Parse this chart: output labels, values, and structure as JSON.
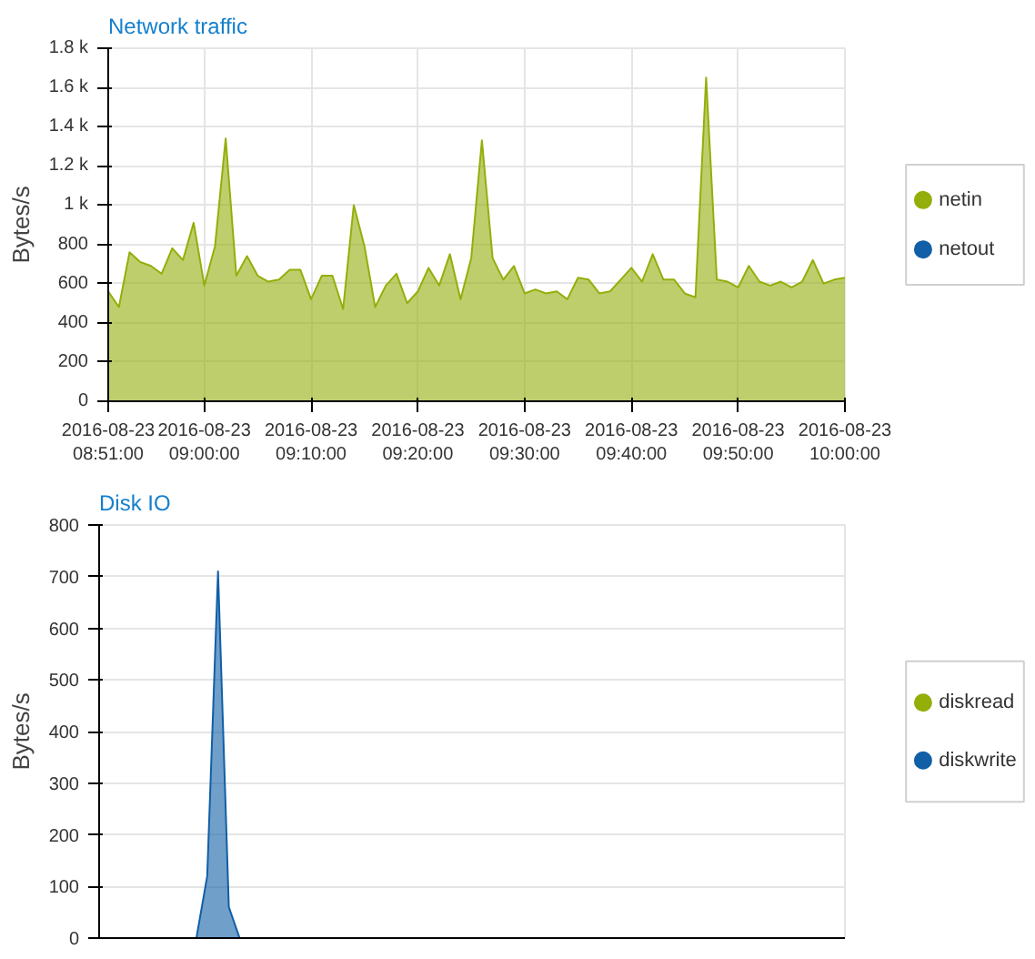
{
  "chart_data": [
    {
      "type": "area",
      "title": "Network traffic",
      "ylabel": "Bytes/s",
      "x": [
        "2016-08-23T08:51",
        "2016-08-23T08:52",
        "2016-08-23T08:53",
        "2016-08-23T08:54",
        "2016-08-23T08:55",
        "2016-08-23T08:56",
        "2016-08-23T08:57",
        "2016-08-23T08:58",
        "2016-08-23T08:59",
        "2016-08-23T09:00",
        "2016-08-23T09:01",
        "2016-08-23T09:02",
        "2016-08-23T09:03",
        "2016-08-23T09:04",
        "2016-08-23T09:05",
        "2016-08-23T09:06",
        "2016-08-23T09:07",
        "2016-08-23T09:08",
        "2016-08-23T09:09",
        "2016-08-23T09:10",
        "2016-08-23T09:11",
        "2016-08-23T09:12",
        "2016-08-23T09:13",
        "2016-08-23T09:14",
        "2016-08-23T09:15",
        "2016-08-23T09:16",
        "2016-08-23T09:17",
        "2016-08-23T09:18",
        "2016-08-23T09:19",
        "2016-08-23T09:20",
        "2016-08-23T09:21",
        "2016-08-23T09:22",
        "2016-08-23T09:23",
        "2016-08-23T09:24",
        "2016-08-23T09:25",
        "2016-08-23T09:26",
        "2016-08-23T09:27",
        "2016-08-23T09:28",
        "2016-08-23T09:29",
        "2016-08-23T09:30",
        "2016-08-23T09:31",
        "2016-08-23T09:32",
        "2016-08-23T09:33",
        "2016-08-23T09:34",
        "2016-08-23T09:35",
        "2016-08-23T09:36",
        "2016-08-23T09:37",
        "2016-08-23T09:38",
        "2016-08-23T09:39",
        "2016-08-23T09:40",
        "2016-08-23T09:41",
        "2016-08-23T09:42",
        "2016-08-23T09:43",
        "2016-08-23T09:44",
        "2016-08-23T09:45",
        "2016-08-23T09:46",
        "2016-08-23T09:47",
        "2016-08-23T09:48",
        "2016-08-23T09:49",
        "2016-08-23T09:50",
        "2016-08-23T09:51",
        "2016-08-23T09:52",
        "2016-08-23T09:53",
        "2016-08-23T09:54",
        "2016-08-23T09:55",
        "2016-08-23T09:56",
        "2016-08-23T09:57",
        "2016-08-23T09:58",
        "2016-08-23T09:59",
        "2016-08-23T10:00"
      ],
      "series": [
        {
          "name": "netin",
          "color": "#94ae0a",
          "values": [
            560,
            480,
            760,
            710,
            690,
            650,
            780,
            720,
            910,
            590,
            790,
            1340,
            640,
            740,
            640,
            610,
            620,
            670,
            670,
            520,
            640,
            640,
            470,
            1000,
            790,
            480,
            590,
            650,
            500,
            560,
            680,
            590,
            750,
            520,
            730,
            1330,
            730,
            620,
            690,
            550,
            570,
            550,
            560,
            520,
            630,
            620,
            550,
            560,
            620,
            680,
            610,
            750,
            620,
            620,
            550,
            530,
            1650,
            620,
            610,
            580,
            690,
            610,
            590,
            610,
            580,
            610,
            720,
            600,
            620,
            630
          ]
        },
        {
          "name": "netout",
          "color": "#115fa6",
          "values": [
            null,
            null,
            null,
            null,
            null,
            null,
            null,
            null,
            null,
            null,
            null,
            null,
            null,
            null,
            null,
            null,
            null,
            null,
            null,
            null,
            null,
            null,
            null,
            null,
            null,
            null,
            null,
            null,
            null,
            null,
            null,
            null,
            null,
            null,
            null,
            null,
            null,
            null,
            null,
            null,
            null,
            null,
            null,
            null,
            null,
            null,
            null,
            null,
            null,
            null,
            null,
            null,
            null,
            null,
            null,
            null,
            null,
            null,
            null,
            null,
            null,
            null,
            null,
            null,
            null,
            null,
            null,
            null,
            null,
            null
          ]
        }
      ],
      "xlim": [
        "2016-08-23T08:51",
        "2016-08-23T10:00"
      ],
      "xticks": [
        {
          "value": "2016-08-23T08:51",
          "label": "2016-08-23\n08:51:00"
        },
        {
          "value": "2016-08-23T09:00",
          "label": "2016-08-23\n09:00:00"
        },
        {
          "value": "2016-08-23T09:10",
          "label": "2016-08-23\n09:10:00"
        },
        {
          "value": "2016-08-23T09:20",
          "label": "2016-08-23\n09:20:00"
        },
        {
          "value": "2016-08-23T09:30",
          "label": "2016-08-23\n09:30:00"
        },
        {
          "value": "2016-08-23T09:40",
          "label": "2016-08-23\n09:40:00"
        },
        {
          "value": "2016-08-23T09:50",
          "label": "2016-08-23\n09:50:00"
        },
        {
          "value": "2016-08-23T10:00",
          "label": "2016-08-23\n10:00:00"
        }
      ],
      "ylim": [
        0,
        1800
      ],
      "yticks": [
        0,
        200,
        400,
        600,
        800,
        {
          "value": 1000,
          "label": "1 k"
        },
        {
          "value": 1200,
          "label": "1.2 k"
        },
        {
          "value": 1400,
          "label": "1.4 k"
        },
        {
          "value": 1600,
          "label": "1.6 k"
        },
        {
          "value": 1800,
          "label": "1.8 k"
        }
      ],
      "grid": true,
      "legend": "right"
    },
    {
      "type": "area",
      "title": "Disk IO",
      "ylabel": "Bytes/s",
      "categories": [
        null,
        null,
        null,
        null,
        null,
        null,
        null,
        null,
        null,
        null,
        null,
        null,
        null,
        null,
        null,
        null,
        null,
        null,
        null,
        null,
        null,
        null,
        null,
        null,
        null,
        null,
        null,
        null,
        null,
        null,
        null,
        null,
        null,
        null,
        null,
        null,
        null,
        null,
        null,
        null,
        null,
        null,
        null,
        null,
        null,
        null,
        null,
        null,
        null,
        null,
        null,
        null,
        null,
        null,
        null,
        null,
        null,
        null,
        null,
        null,
        null,
        null,
        null,
        null,
        null,
        null,
        null,
        null,
        null,
        null
      ],
      "series": [
        {
          "name": "diskread",
          "color": "#94ae0a",
          "values": [
            null,
            null,
            null,
            null,
            null,
            null,
            null,
            null,
            null,
            null,
            null,
            null,
            null,
            null,
            null,
            null,
            null,
            null,
            null,
            null,
            null,
            null,
            null,
            null,
            null,
            null,
            null,
            null,
            null,
            null,
            null,
            null,
            null,
            null,
            null,
            null,
            null,
            null,
            null,
            null,
            null,
            null,
            null,
            null,
            null,
            null,
            null,
            null,
            null,
            null,
            null,
            null,
            null,
            null,
            null,
            null,
            null,
            null,
            null,
            null,
            null,
            null,
            null,
            null,
            null,
            null,
            null,
            null,
            null,
            null
          ]
        },
        {
          "name": "diskwrite",
          "color": "#115fa6",
          "values": [
            0,
            0,
            0,
            0,
            0,
            0,
            0,
            0,
            0,
            0,
            120,
            710,
            60,
            0,
            0,
            0,
            0,
            0,
            0,
            0,
            0,
            0,
            0,
            0,
            0,
            0,
            0,
            0,
            0,
            0,
            0,
            0,
            0,
            0,
            0,
            0,
            0,
            0,
            0,
            0,
            0,
            0,
            0,
            0,
            0,
            0,
            0,
            0,
            0,
            0,
            0,
            0,
            0,
            0,
            0,
            0,
            0,
            0,
            0,
            0,
            0,
            0,
            0,
            0,
            0,
            0,
            0,
            0,
            0,
            0
          ]
        }
      ],
      "ylim": [
        0,
        800
      ],
      "yticks": [
        0,
        100,
        200,
        300,
        400,
        500,
        600,
        700,
        800
      ],
      "grid": "y",
      "legend": "right"
    }
  ]
}
